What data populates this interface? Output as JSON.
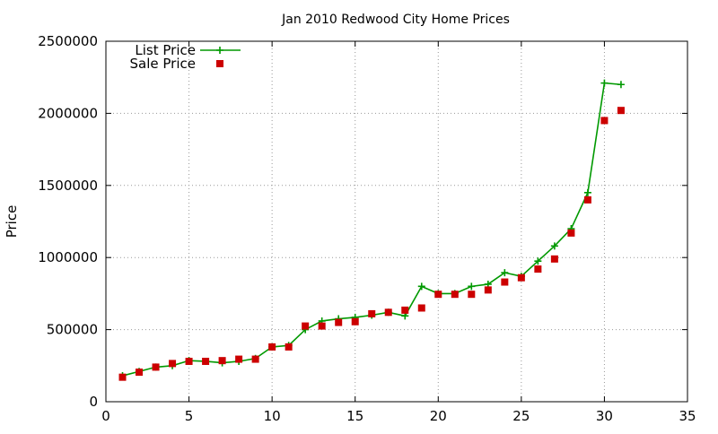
{
  "chart_data": {
    "type": "line",
    "title": "Jan 2010 Redwood City Home Prices",
    "xlabel": "",
    "ylabel": "Price",
    "xlim": [
      0,
      35
    ],
    "ylim": [
      0,
      2500000
    ],
    "xticks": [
      0,
      5,
      10,
      15,
      20,
      25,
      30,
      35
    ],
    "yticks": [
      0,
      500000,
      1000000,
      1500000,
      2000000,
      2500000
    ],
    "grid": true,
    "legend_position": "top-left",
    "series": [
      {
        "name": "List Price",
        "style": "line-with-plus-markers",
        "color": "#009900",
        "x": [
          1,
          2,
          3,
          4,
          5,
          6,
          7,
          8,
          9,
          10,
          11,
          12,
          13,
          14,
          15,
          16,
          17,
          18,
          19,
          20,
          21,
          22,
          23,
          24,
          25,
          26,
          27,
          28,
          29,
          30,
          31
        ],
        "y": [
          180000,
          210000,
          240000,
          250000,
          285000,
          280000,
          270000,
          280000,
          300000,
          380000,
          390000,
          500000,
          560000,
          575000,
          585000,
          600000,
          620000,
          595000,
          800000,
          750000,
          750000,
          800000,
          815000,
          895000,
          870000,
          975000,
          1080000,
          1200000,
          1450000,
          2210000,
          2200000
        ]
      },
      {
        "name": "Sale Price",
        "style": "square-markers",
        "color": "#cc0000",
        "x": [
          1,
          2,
          3,
          4,
          5,
          6,
          7,
          8,
          9,
          10,
          11,
          12,
          13,
          14,
          15,
          16,
          17,
          18,
          19,
          20,
          21,
          22,
          23,
          24,
          25,
          26,
          27,
          28,
          29,
          30,
          31
        ],
        "y": [
          170000,
          205000,
          240000,
          265000,
          280000,
          280000,
          285000,
          295000,
          295000,
          380000,
          380000,
          525000,
          525000,
          550000,
          555000,
          610000,
          620000,
          635000,
          650000,
          745000,
          745000,
          745000,
          775000,
          830000,
          860000,
          920000,
          990000,
          1170000,
          1400000,
          1950000,
          2020000
        ]
      }
    ]
  }
}
